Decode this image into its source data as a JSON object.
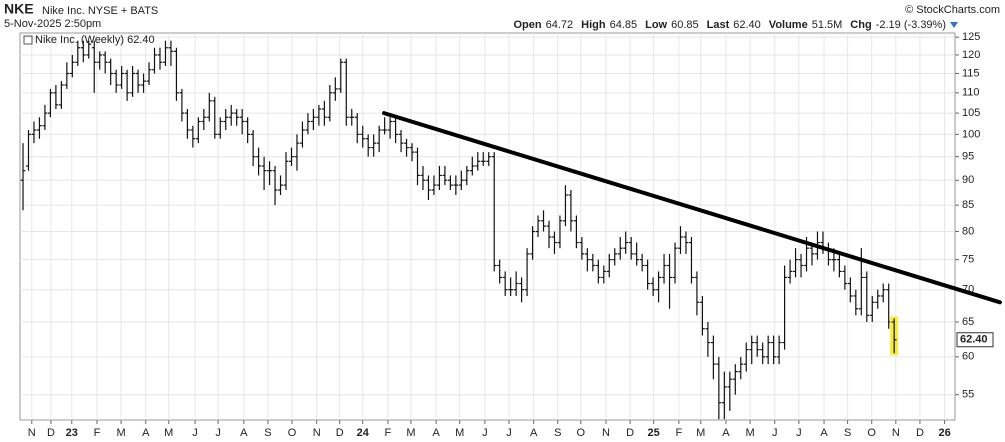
{
  "header": {
    "symbol": "NKE",
    "name": "Nike Inc. NYSE + BATS",
    "datetime": "5-Nov-2025 2:50pm",
    "credit": "© StockCharts.com",
    "quote": [
      {
        "label": "Open",
        "value": "64.72"
      },
      {
        "label": "High",
        "value": "64.85"
      },
      {
        "label": "Low",
        "value": "60.85"
      },
      {
        "label": "Last",
        "value": "62.40"
      },
      {
        "label": "Volume",
        "value": "51.5M"
      },
      {
        "label": "Chg",
        "value": "-2.19 (-3.39%)"
      }
    ]
  },
  "chart_data": {
    "type": "ohlc",
    "log_y": true,
    "grid": true,
    "ylim": [
      51.9,
      126.2
    ],
    "yticks": [
      55,
      60,
      65,
      70,
      75,
      80,
      85,
      90,
      95,
      100,
      105,
      110,
      115,
      120,
      125
    ],
    "xlim": [
      -0.55,
      170.1
    ],
    "xticks": [
      {
        "value": 1.6,
        "label": "N"
      },
      {
        "value": 5.1,
        "label": "D"
      },
      {
        "value": 8.9,
        "label": "23"
      },
      {
        "value": 13.5,
        "label": "F"
      },
      {
        "value": 17.9,
        "label": "M"
      },
      {
        "value": 22.4,
        "label": "A"
      },
      {
        "value": 26.6,
        "label": "M"
      },
      {
        "value": 31.4,
        "label": "J"
      },
      {
        "value": 35.6,
        "label": "J"
      },
      {
        "value": 40.3,
        "label": "A"
      },
      {
        "value": 44.7,
        "label": "S"
      },
      {
        "value": 49.1,
        "label": "O"
      },
      {
        "value": 53.6,
        "label": "N"
      },
      {
        "value": 57.8,
        "label": "D"
      },
      {
        "value": 62.0,
        "label": "24"
      },
      {
        "value": 66.6,
        "label": "F"
      },
      {
        "value": 70.8,
        "label": "M"
      },
      {
        "value": 75.4,
        "label": "A"
      },
      {
        "value": 79.7,
        "label": "M"
      },
      {
        "value": 84.3,
        "label": "J"
      },
      {
        "value": 88.7,
        "label": "J"
      },
      {
        "value": 93.2,
        "label": "A"
      },
      {
        "value": 97.6,
        "label": "S"
      },
      {
        "value": 101.8,
        "label": "O"
      },
      {
        "value": 106.4,
        "label": "N"
      },
      {
        "value": 110.8,
        "label": "D"
      },
      {
        "value": 115.1,
        "label": "25"
      },
      {
        "value": 119.7,
        "label": "F"
      },
      {
        "value": 123.7,
        "label": "M"
      },
      {
        "value": 128.3,
        "label": "A"
      },
      {
        "value": 132.7,
        "label": "M"
      },
      {
        "value": 137.2,
        "label": "J"
      },
      {
        "value": 141.6,
        "label": "J"
      },
      {
        "value": 146.2,
        "label": "A"
      },
      {
        "value": 150.5,
        "label": "S"
      },
      {
        "value": 154.9,
        "label": "O"
      },
      {
        "value": 159.3,
        "label": "N"
      },
      {
        "value": 163.7,
        "label": "D"
      },
      {
        "value": 168.2,
        "label": "26"
      }
    ],
    "trendline": {
      "x": [
        65.9,
        178.3
      ],
      "y": [
        105,
        68
      ],
      "color": "#000000"
    },
    "highlight_color": "#f5ec3c",
    "series": [
      {
        "name": "Nike Inc. (Weekly) 62.40",
        "color": "#111111",
        "last_label": "62.40",
        "values": [
          [
            90,
            98,
            84,
            92
          ],
          [
            93,
            101,
            92,
            100
          ],
          [
            100,
            103,
            98,
            101
          ],
          [
            101,
            104,
            99,
            102
          ],
          [
            102,
            107,
            101,
            105
          ],
          [
            105,
            111,
            104,
            110
          ],
          [
            110,
            112,
            106,
            107
          ],
          [
            107,
            113,
            106,
            112
          ],
          [
            112,
            118,
            111,
            115
          ],
          [
            115,
            120,
            114,
            118
          ],
          [
            118,
            124,
            117,
            122
          ],
          [
            122,
            124,
            118,
            120
          ],
          [
            120,
            124,
            119,
            123
          ],
          [
            122,
            124,
            110,
            118
          ],
          [
            118,
            121,
            116,
            120
          ],
          [
            120,
            121,
            115,
            118
          ],
          [
            118,
            119,
            112,
            115
          ],
          [
            115,
            116,
            110,
            112
          ],
          [
            112,
            117,
            111,
            115
          ],
          [
            115,
            116,
            108,
            110
          ],
          [
            110,
            117,
            109,
            115
          ],
          [
            115,
            116,
            110,
            112
          ],
          [
            112,
            115,
            110,
            113
          ],
          [
            113,
            118,
            112,
            116
          ],
          [
            116,
            122,
            115,
            120
          ],
          [
            120,
            122,
            116,
            118
          ],
          [
            118,
            124,
            117,
            122
          ],
          [
            122,
            124,
            117,
            121
          ],
          [
            121,
            122,
            108,
            110
          ],
          [
            110,
            111,
            103,
            105
          ],
          [
            105,
            106,
            99,
            101
          ],
          [
            101,
            102,
            97,
            99
          ],
          [
            99,
            104,
            98,
            103
          ],
          [
            103,
            106,
            101,
            104
          ],
          [
            104,
            110,
            103,
            108
          ],
          [
            108,
            109,
            99,
            100
          ],
          [
            100,
            104,
            99,
            103
          ],
          [
            103,
            106,
            101,
            104
          ],
          [
            104,
            107,
            102,
            105
          ],
          [
            105,
            106,
            102,
            104
          ],
          [
            104,
            106,
            100,
            103
          ],
          [
            103,
            104,
            98,
            100
          ],
          [
            100,
            101,
            93,
            95
          ],
          [
            95,
            97,
            91,
            93
          ],
          [
            93,
            95,
            88,
            92
          ],
          [
            92,
            94,
            89,
            92
          ],
          [
            92,
            93,
            85,
            88
          ],
          [
            88,
            91,
            87,
            89
          ],
          [
            89,
            96,
            88,
            94
          ],
          [
            94,
            97,
            93,
            95
          ],
          [
            95,
            100,
            92,
            98
          ],
          [
            98,
            103,
            97,
            101
          ],
          [
            101,
            105,
            100,
            103
          ],
          [
            103,
            106,
            101,
            104
          ],
          [
            104,
            107,
            102,
            106
          ],
          [
            106,
            108,
            102,
            104
          ],
          [
            104,
            112,
            103,
            110
          ],
          [
            110,
            114,
            108,
            111
          ],
          [
            111,
            119,
            110,
            118
          ],
          [
            118,
            119,
            102,
            104
          ],
          [
            104,
            106,
            102,
            104
          ],
          [
            104,
            105,
            98,
            100
          ],
          [
            100,
            102,
            97,
            99
          ],
          [
            99,
            100,
            95,
            97
          ],
          [
            97,
            100,
            95,
            98
          ],
          [
            98,
            102,
            96,
            101
          ],
          [
            101,
            104,
            100,
            101
          ],
          [
            101,
            104,
            99,
            103
          ],
          [
            103,
            104,
            98,
            100
          ],
          [
            100,
            101,
            96,
            98
          ],
          [
            98,
            99,
            95,
            97
          ],
          [
            97,
            98,
            94,
            96
          ],
          [
            96,
            97,
            89,
            91
          ],
          [
            91,
            93,
            88,
            90
          ],
          [
            90,
            91,
            86,
            88
          ],
          [
            88,
            91,
            87,
            89
          ],
          [
            89,
            93,
            88,
            91
          ],
          [
            91,
            93,
            89,
            90
          ],
          [
            90,
            91,
            88,
            89
          ],
          [
            89,
            91,
            87,
            89
          ],
          [
            89,
            92,
            88,
            90
          ],
          [
            90,
            93,
            89,
            92
          ],
          [
            92,
            95,
            91,
            93
          ],
          [
            93,
            96,
            92,
            94
          ],
          [
            94,
            96,
            93,
            94
          ],
          [
            94,
            96,
            93,
            95
          ],
          [
            95,
            96,
            73,
            74
          ],
          [
            74,
            75,
            71,
            72
          ],
          [
            72,
            73,
            69,
            70
          ],
          [
            70,
            72,
            69,
            70
          ],
          [
            70,
            73,
            69,
            71
          ],
          [
            71,
            72,
            68,
            70
          ],
          [
            70,
            77,
            69,
            76
          ],
          [
            76,
            81,
            75,
            80
          ],
          [
            80,
            83,
            79,
            82
          ],
          [
            82,
            84,
            80,
            81
          ],
          [
            81,
            82,
            77,
            79
          ],
          [
            79,
            80,
            76,
            78
          ],
          [
            78,
            83,
            77,
            82
          ],
          [
            82,
            89,
            81,
            87
          ],
          [
            87,
            88,
            80,
            82
          ],
          [
            82,
            83,
            77,
            78
          ],
          [
            78,
            79,
            75,
            76
          ],
          [
            76,
            77,
            73,
            75
          ],
          [
            75,
            76,
            73,
            74
          ],
          [
            74,
            75,
            71,
            72
          ],
          [
            72,
            74,
            71,
            73
          ],
          [
            73,
            76,
            72,
            75
          ],
          [
            75,
            77,
            74,
            76
          ],
          [
            76,
            79,
            75,
            77
          ],
          [
            77,
            80,
            76,
            78
          ],
          [
            78,
            79,
            75,
            76
          ],
          [
            76,
            78,
            74,
            75
          ],
          [
            75,
            76,
            73,
            74
          ],
          [
            74,
            75,
            70,
            71
          ],
          [
            71,
            72,
            69,
            70
          ],
          [
            70,
            73,
            68,
            72
          ],
          [
            72,
            76,
            71,
            74
          ],
          [
            74,
            76,
            67,
            72
          ],
          [
            72,
            78,
            71,
            77
          ],
          [
            77,
            81,
            76,
            79
          ],
          [
            79,
            80,
            76,
            78
          ],
          [
            78,
            79,
            71,
            72
          ],
          [
            72,
            73,
            66,
            68
          ],
          [
            68,
            69,
            63,
            64
          ],
          [
            64,
            65,
            60,
            62
          ],
          [
            62,
            63,
            57,
            59
          ],
          [
            59,
            60,
            52,
            54
          ],
          [
            54,
            58,
            52,
            56
          ],
          [
            56,
            58,
            53,
            57
          ],
          [
            57,
            59,
            55,
            58
          ],
          [
            58,
            60,
            57,
            59
          ],
          [
            59,
            62,
            58,
            61
          ],
          [
            61,
            63,
            59,
            62
          ],
          [
            62,
            63,
            60,
            61
          ],
          [
            61,
            62,
            59,
            60
          ],
          [
            60,
            63,
            59,
            62
          ],
          [
            62,
            63,
            59,
            60
          ],
          [
            60,
            63,
            59,
            62
          ],
          [
            62,
            74,
            61,
            72
          ],
          [
            72,
            75,
            71,
            73
          ],
          [
            73,
            77,
            72,
            75
          ],
          [
            75,
            76,
            72,
            74
          ],
          [
            74,
            79,
            73,
            77
          ],
          [
            77,
            78,
            74,
            76
          ],
          [
            76,
            80,
            75,
            78
          ],
          [
            78,
            80,
            76,
            77
          ],
          [
            77,
            78,
            74,
            75
          ],
          [
            75,
            77,
            73,
            75
          ],
          [
            75,
            76,
            72,
            73
          ],
          [
            73,
            74,
            70,
            71
          ],
          [
            71,
            72,
            68,
            69
          ],
          [
            69,
            70,
            66,
            67
          ],
          [
            67,
            77,
            66,
            72
          ],
          [
            72,
            73,
            65,
            66
          ],
          [
            66,
            69,
            65,
            68
          ],
          [
            68,
            70,
            67,
            69
          ],
          [
            69,
            71,
            68,
            70
          ],
          [
            70,
            71,
            64,
            65
          ],
          [
            65,
            65.5,
            60.5,
            62.4
          ]
        ]
      }
    ]
  }
}
